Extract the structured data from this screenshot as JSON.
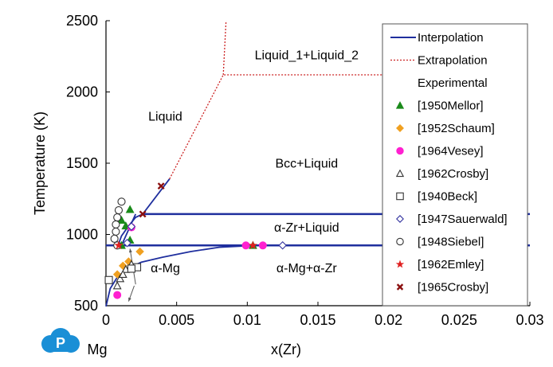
{
  "chart_data": {
    "type": "line",
    "xlabel": "x(Zr)",
    "ylabel": "Temperature (K)",
    "x_left_label": "Mg",
    "xlim": [
      0,
      0.03
    ],
    "ylim": [
      500,
      2500
    ],
    "xticks": [
      0,
      0.005,
      0.01,
      0.015,
      0.02,
      0.025,
      0.03
    ],
    "xtick_labels": [
      "0",
      "0.005",
      "0.01",
      "0.015",
      "0.02",
      "0.025",
      "0.03"
    ],
    "yticks": [
      500,
      1000,
      1500,
      2000,
      2500
    ],
    "ytick_labels": [
      "500",
      "1000",
      "1500",
      "2000",
      "2500"
    ],
    "grid": false,
    "legend_position": "right",
    "legend_header": "Experimental",
    "colors": {
      "interpolation": "#1f2f9e",
      "extrapolation": "#cc2222",
      "mellor": "#1a8a1a",
      "schaum": "#f0a020",
      "vesey": "#ff20d0",
      "hollow": "#333333",
      "sauerwald": "#3535a0",
      "emley": "#e02020",
      "crosby65": "#8b1010"
    },
    "region_labels": [
      {
        "text": "Liquid_1+Liquid_2",
        "x": 0.0142,
        "y": 2230
      },
      {
        "text": "Liquid",
        "x": 0.0042,
        "y": 1800
      },
      {
        "text": "Bcc+Liquid",
        "x": 0.0142,
        "y": 1470
      },
      {
        "text": "α-Zr+Liquid",
        "x": 0.0142,
        "y": 1020
      },
      {
        "text": "α-Mg",
        "x": 0.0042,
        "y": 735
      },
      {
        "text": "α-Mg+α-Zr",
        "x": 0.0142,
        "y": 735
      }
    ],
    "series": [
      {
        "name": "Interpolation",
        "style": "interpolation",
        "segments": [
          [
            [
              0.00085,
              923
            ],
            [
              0.0011,
              990
            ],
            [
              0.0016,
              1060
            ],
            [
              0.0021,
              1120
            ],
            [
              0.0026,
              1143
            ],
            [
              0.0045,
              1390
            ]
          ],
          [
            [
              0.0025,
              1143
            ],
            [
              0.03,
              1143
            ]
          ],
          [
            [
              0,
              923
            ],
            [
              0.03,
              923
            ]
          ],
          [
            [
              0,
              495
            ],
            [
              0.0003,
              620
            ],
            [
              0.0008,
              700
            ],
            [
              0.0015,
              760
            ],
            [
              0.0025,
              805
            ],
            [
              0.004,
              840
            ],
            [
              0.006,
              880
            ],
            [
              0.008,
              910
            ],
            [
              0.0105,
              923
            ]
          ],
          [
            [
              0.0011,
              923
            ],
            [
              0.0021,
              1143
            ]
          ]
        ]
      },
      {
        "name": "Extrapolation",
        "style": "extrapolation",
        "segments": [
          [
            [
              0.0045,
              1390
            ],
            [
              0.0083,
              2120
            ],
            [
              0.013,
              2120
            ],
            [
              0.024,
              2120
            ]
          ],
          [
            [
              0.0083,
              2120
            ],
            [
              0.0085,
              2500
            ]
          ]
        ]
      }
    ],
    "points": [
      {
        "name": "[1950Mellor]",
        "marker": "triangle-filled",
        "color": "#1a8a1a",
        "values": [
          [
            0.0017,
            1175
          ],
          [
            0.0011,
            1100
          ],
          [
            0.0014,
            1060
          ],
          [
            0.0017,
            960
          ],
          [
            0.0011,
            923
          ],
          [
            0.0104,
            923
          ]
        ]
      },
      {
        "name": "[1952Schaum]",
        "marker": "diamond-filled",
        "color": "#f0a020",
        "values": [
          [
            0.0012,
            780
          ],
          [
            0.0008,
            720
          ],
          [
            0.0024,
            880
          ],
          [
            0.0016,
            810
          ]
        ]
      },
      {
        "name": "[1964Vesey]",
        "marker": "circle-filled",
        "color": "#ff20d0",
        "values": [
          [
            0.0008,
            575
          ],
          [
            0.0018,
            1050
          ],
          [
            0.0099,
            923
          ],
          [
            0.0111,
            923
          ]
        ]
      },
      {
        "name": "[1962Crosby]",
        "marker": "triangle-open",
        "color": "#333333",
        "values": [
          [
            0.0008,
            640
          ],
          [
            0.001,
            690
          ],
          [
            0.0014,
            755
          ],
          [
            0.0018,
            790
          ],
          [
            0.0012,
            720
          ]
        ]
      },
      {
        "name": "[1940Beck]",
        "marker": "square-open",
        "color": "#333333",
        "values": [
          [
            0.0002,
            680
          ],
          [
            0.0022,
            770
          ],
          [
            0.0018,
            760
          ]
        ]
      },
      {
        "name": "[1947Sauerwald]",
        "marker": "diamond-open",
        "color": "#3535a0",
        "values": [
          [
            0.0018,
            1055
          ],
          [
            0.0015,
            940
          ],
          [
            0.0125,
            923
          ]
        ]
      },
      {
        "name": "[1948Siebel]",
        "marker": "circle-open",
        "color": "#333333",
        "values": [
          [
            0.0011,
            1230
          ],
          [
            0.0009,
            1170
          ],
          [
            0.0008,
            1120
          ],
          [
            0.0007,
            1070
          ],
          [
            0.0007,
            1020
          ],
          [
            0.0006,
            970
          ],
          [
            0.0008,
            923
          ]
        ]
      },
      {
        "name": "[1962Emley]",
        "marker": "star",
        "color": "#e02020",
        "values": [
          [
            0.0009,
            923
          ],
          [
            0.0104,
            923
          ]
        ]
      },
      {
        "name": "[1965Crosby]",
        "marker": "x",
        "color": "#8b1010",
        "values": [
          [
            0.0026,
            1143
          ],
          [
            0.0039,
            1340
          ]
        ]
      }
    ],
    "arrows": [
      {
        "from": [
          0.0021,
          650
        ],
        "to": [
          0.0017,
          900
        ],
        "color": "#555555"
      },
      {
        "from": [
          0.002,
          640
        ],
        "to": [
          0.0016,
          530
        ],
        "color": "#555555"
      }
    ],
    "legend": {
      "items": [
        {
          "label": "Interpolation",
          "kind": "line-solid",
          "color": "#1f2f9e"
        },
        {
          "label": "Extrapolation",
          "kind": "line-dotted",
          "color": "#cc2222"
        },
        {
          "label": "Experimental",
          "kind": "header"
        },
        {
          "label": "[1950Mellor]",
          "kind": "triangle-filled",
          "color": "#1a8a1a"
        },
        {
          "label": "[1952Schaum]",
          "kind": "diamond-filled",
          "color": "#f0a020"
        },
        {
          "label": "[1964Vesey]",
          "kind": "circle-filled",
          "color": "#ff20d0"
        },
        {
          "label": "[1962Crosby]",
          "kind": "triangle-open",
          "color": "#333333"
        },
        {
          "label": "[1940Beck]",
          "kind": "square-open",
          "color": "#333333"
        },
        {
          "label": "[1947Sauerwald]",
          "kind": "diamond-open",
          "color": "#3535a0"
        },
        {
          "label": "[1948Siebel]",
          "kind": "circle-open",
          "color": "#333333"
        },
        {
          "label": "[1962Emley]",
          "kind": "star",
          "color": "#e02020"
        },
        {
          "label": "[1965Crosby]",
          "kind": "x",
          "color": "#8b1010"
        }
      ]
    },
    "logo": {
      "name": "P-logo",
      "color": "#1a8fd6",
      "letter": "P"
    }
  }
}
